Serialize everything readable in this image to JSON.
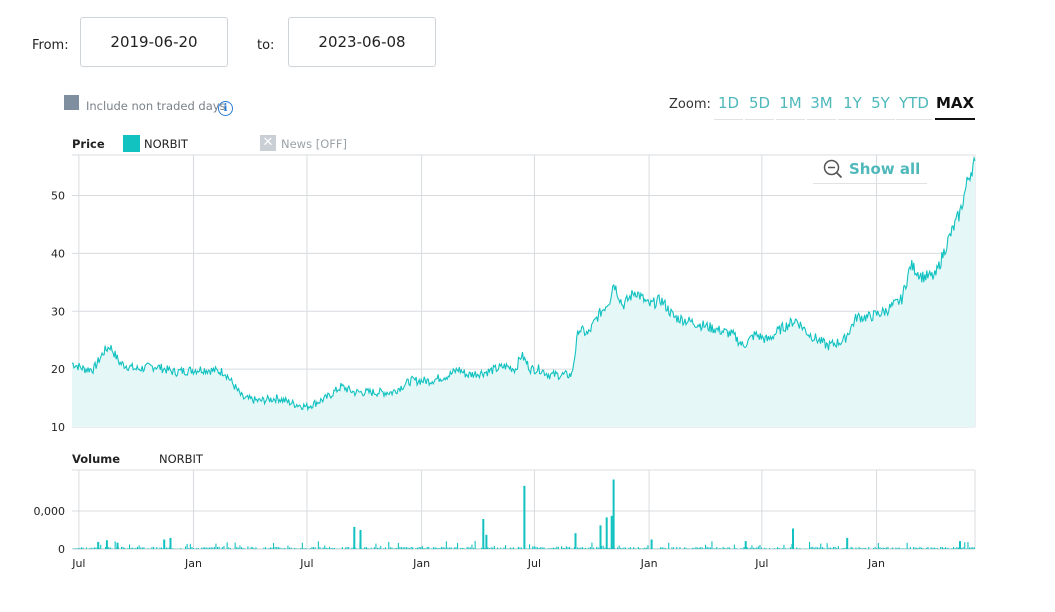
{
  "range": {
    "from_label": "From:",
    "from_value": "2019-06-20",
    "to_label": "to:",
    "to_value": "2023-06-08"
  },
  "options": {
    "non_traded_label": "Include non traded days",
    "checkbox_color": "#7f8fa0"
  },
  "zoom": {
    "label": "Zoom:",
    "buttons": [
      "1D",
      "5D",
      "1M",
      "3M",
      "1Y",
      "5Y",
      "YTD",
      "MAX"
    ],
    "active": "MAX"
  },
  "legend": {
    "price_title": "Price",
    "series_name": "NORBIT",
    "series_color": "#12c2c1",
    "news_label": "News [OFF]",
    "volume_title": "Volume",
    "volume_series": "NORBIT"
  },
  "show_all_label": "Show all",
  "chart_data": [
    {
      "type": "area",
      "ylim": [
        10,
        57
      ],
      "y_ticks": [
        10,
        20,
        30,
        40,
        50
      ],
      "x_ticks": [
        "Jul",
        "Jan",
        "Jul",
        "Jan",
        "Jul",
        "Jan",
        "Jul",
        "Jan"
      ],
      "x_tick_dates": [
        "2019-07-01",
        "2020-01-01",
        "2020-07-01",
        "2021-01-01",
        "2021-07-01",
        "2022-01-01",
        "2022-07-01",
        "2023-01-01"
      ],
      "x_range": [
        "2019-06-20",
        "2023-06-08"
      ],
      "grid": true,
      "series": [
        {
          "name": "NORBIT",
          "color": "#12c2c1",
          "points": [
            [
              "2019-06-20",
              21
            ],
            [
              "2019-07-10",
              20
            ],
            [
              "2019-07-25",
              20
            ],
            [
              "2019-08-10",
              23
            ],
            [
              "2019-08-20",
              24
            ],
            [
              "2019-09-05",
              21
            ],
            [
              "2019-10-01",
              20
            ],
            [
              "2019-11-01",
              20.5
            ],
            [
              "2019-12-01",
              19.5
            ],
            [
              "2020-01-15",
              20
            ],
            [
              "2020-02-20",
              19.5
            ],
            [
              "2020-03-20",
              15
            ],
            [
              "2020-04-15",
              14.5
            ],
            [
              "2020-05-15",
              15
            ],
            [
              "2020-06-10",
              14
            ],
            [
              "2020-07-01",
              13.5
            ],
            [
              "2020-08-01",
              15
            ],
            [
              "2020-08-25",
              17
            ],
            [
              "2020-09-15",
              16
            ],
            [
              "2020-10-15",
              16
            ],
            [
              "2020-11-15",
              16
            ],
            [
              "2020-12-15",
              18
            ],
            [
              "2021-01-15",
              18
            ],
            [
              "2021-02-15",
              19
            ],
            [
              "2021-03-01",
              20
            ],
            [
              "2021-03-15",
              19
            ],
            [
              "2021-04-15",
              19.5
            ],
            [
              "2021-05-15",
              20.5
            ],
            [
              "2021-06-01",
              20
            ],
            [
              "2021-06-10",
              22.5
            ],
            [
              "2021-06-25",
              20
            ],
            [
              "2021-07-10",
              20
            ],
            [
              "2021-07-25",
              19
            ],
            [
              "2021-08-15",
              19
            ],
            [
              "2021-08-30",
              19
            ],
            [
              "2021-09-10",
              27
            ],
            [
              "2021-09-25",
              26
            ],
            [
              "2021-10-10",
              29
            ],
            [
              "2021-10-30",
              32
            ],
            [
              "2021-11-05",
              35
            ],
            [
              "2021-11-20",
              31
            ],
            [
              "2021-12-10",
              33.5
            ],
            [
              "2022-01-01",
              31
            ],
            [
              "2022-01-20",
              32
            ],
            [
              "2022-02-10",
              29
            ],
            [
              "2022-03-15",
              28
            ],
            [
              "2022-04-15",
              27
            ],
            [
              "2022-05-15",
              26
            ],
            [
              "2022-06-01",
              24
            ],
            [
              "2022-06-20",
              26
            ],
            [
              "2022-07-10",
              25
            ],
            [
              "2022-08-01",
              27
            ],
            [
              "2022-08-25",
              28.5
            ],
            [
              "2022-09-15",
              26
            ],
            [
              "2022-10-15",
              24
            ],
            [
              "2022-11-10",
              25
            ],
            [
              "2022-11-30",
              29
            ],
            [
              "2022-12-20",
              29
            ],
            [
              "2023-01-15",
              30
            ],
            [
              "2023-02-10",
              32
            ],
            [
              "2023-02-25",
              38
            ],
            [
              "2023-03-15",
              36
            ],
            [
              "2023-04-05",
              36
            ],
            [
              "2023-04-25",
              42
            ],
            [
              "2023-05-15",
              47
            ],
            [
              "2023-05-28",
              53
            ],
            [
              "2023-06-08",
              56
            ]
          ]
        }
      ]
    },
    {
      "type": "bar",
      "ylabel": "Volume",
      "y_ticks_labels": [
        "0",
        "0,000"
      ],
      "grid": true,
      "series": [
        {
          "name": "NORBIT",
          "color": "#12c2c1",
          "spikes": [
            [
              "2019-08-01",
              0.09
            ],
            [
              "2019-08-15",
              0.11
            ],
            [
              "2019-09-01",
              0.08
            ],
            [
              "2019-11-15",
              0.12
            ],
            [
              "2019-11-25",
              0.14
            ],
            [
              "2020-09-15",
              0.28
            ],
            [
              "2020-09-25",
              0.24
            ],
            [
              "2021-04-10",
              0.38
            ],
            [
              "2021-04-15",
              0.18
            ],
            [
              "2021-06-15",
              0.8
            ],
            [
              "2021-09-05",
              0.2
            ],
            [
              "2021-10-15",
              0.3
            ],
            [
              "2021-10-25",
              0.4
            ],
            [
              "2021-11-02",
              0.42
            ],
            [
              "2021-11-05",
              0.88
            ],
            [
              "2022-01-05",
              0.12
            ],
            [
              "2022-06-05",
              0.1
            ],
            [
              "2022-08-20",
              0.26
            ],
            [
              "2022-11-15",
              0.14
            ],
            [
              "2023-05-15",
              0.1
            ]
          ]
        }
      ]
    }
  ]
}
